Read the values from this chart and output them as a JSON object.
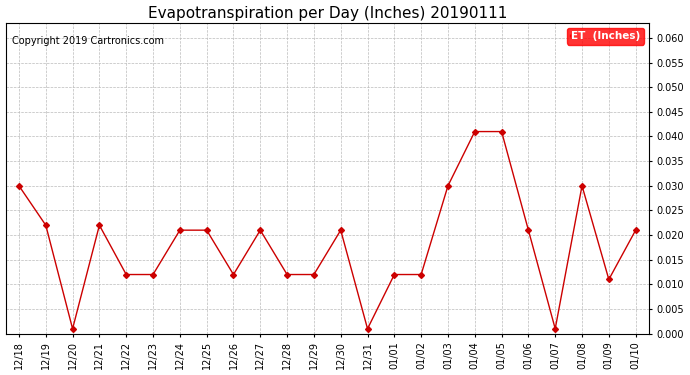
{
  "title": "Evapotranspiration per Day (Inches) 20190111",
  "copyright": "Copyright 2019 Cartronics.com",
  "legend_label": "ET  (Inches)",
  "legend_bg": "#ff0000",
  "legend_text_color": "#ffffff",
  "x_labels": [
    "12/18",
    "12/19",
    "12/20",
    "12/21",
    "12/22",
    "12/23",
    "12/24",
    "12/25",
    "12/26",
    "12/27",
    "12/28",
    "12/29",
    "12/30",
    "12/31",
    "01/01",
    "01/02",
    "01/03",
    "01/04",
    "01/05",
    "01/06",
    "01/07",
    "01/08",
    "01/09",
    "01/10"
  ],
  "y_values": [
    0.03,
    0.022,
    0.001,
    0.022,
    0.012,
    0.012,
    0.021,
    0.021,
    0.012,
    0.021,
    0.012,
    0.012,
    0.021,
    0.001,
    0.012,
    0.012,
    0.03,
    0.041,
    0.041,
    0.021,
    0.001,
    0.03,
    0.011,
    0.021
  ],
  "line_color": "#cc0000",
  "marker": "D",
  "marker_size": 3,
  "ylim_min": 0.0,
  "ylim_max": 0.063,
  "yticks": [
    0.0,
    0.005,
    0.01,
    0.015,
    0.02,
    0.025,
    0.03,
    0.035,
    0.04,
    0.045,
    0.05,
    0.055,
    0.06
  ],
  "bg_color": "#ffffff",
  "grid_color": "#bbbbbb",
  "title_fontsize": 11,
  "tick_fontsize": 7,
  "copyright_fontsize": 7
}
